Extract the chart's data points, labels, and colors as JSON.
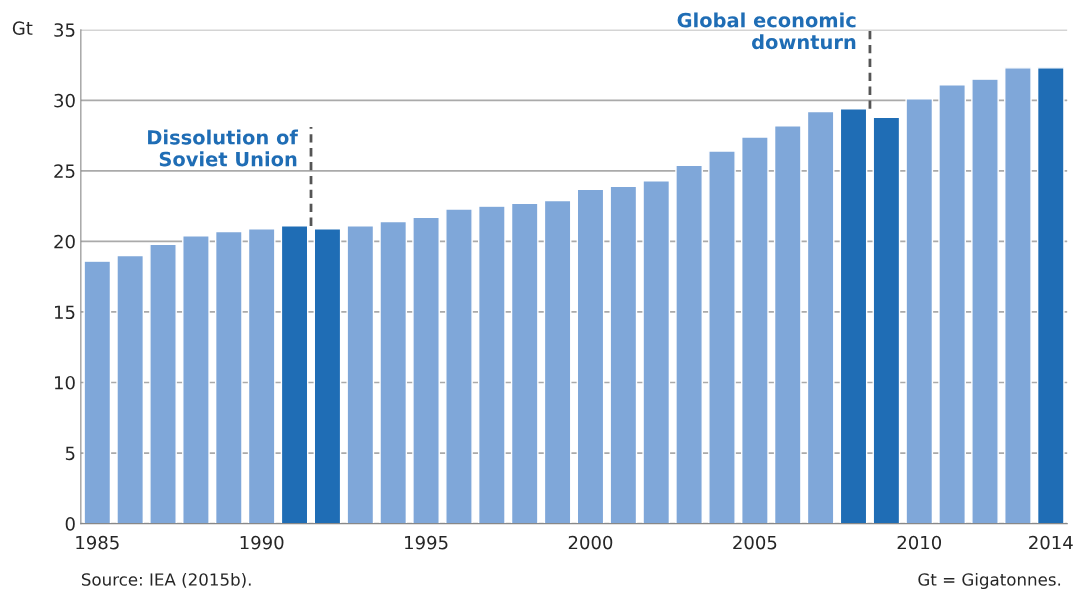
{
  "chart_data": {
    "type": "bar",
    "ylabel": "Gt",
    "x": [
      1985,
      1986,
      1987,
      1988,
      1989,
      1990,
      1991,
      1992,
      1993,
      1994,
      1995,
      1996,
      1997,
      1998,
      1999,
      2000,
      2001,
      2002,
      2003,
      2004,
      2005,
      2006,
      2007,
      2008,
      2009,
      2010,
      2011,
      2012,
      2013,
      2014
    ],
    "values": [
      18.6,
      19.0,
      19.8,
      20.4,
      20.7,
      20.9,
      21.1,
      20.9,
      21.1,
      21.4,
      21.7,
      22.3,
      22.5,
      22.7,
      22.9,
      23.7,
      23.9,
      24.3,
      25.4,
      26.4,
      27.4,
      28.2,
      29.2,
      29.4,
      28.8,
      30.1,
      31.1,
      31.5,
      32.3,
      32.3
    ],
    "colors": [
      "#7fa7d9",
      "#7fa7d9",
      "#7fa7d9",
      "#7fa7d9",
      "#7fa7d9",
      "#7fa7d9",
      "#1f6db5",
      "#1f6db5",
      "#7fa7d9",
      "#7fa7d9",
      "#7fa7d9",
      "#7fa7d9",
      "#7fa7d9",
      "#7fa7d9",
      "#7fa7d9",
      "#7fa7d9",
      "#7fa7d9",
      "#7fa7d9",
      "#7fa7d9",
      "#7fa7d9",
      "#7fa7d9",
      "#7fa7d9",
      "#7fa7d9",
      "#1f6db5",
      "#1f6db5",
      "#7fa7d9",
      "#7fa7d9",
      "#7fa7d9",
      "#7fa7d9",
      "#1f6db5"
    ],
    "xlim": [
      1984.5,
      2014.5
    ],
    "xticks": [
      1985,
      1990,
      1995,
      2000,
      2005,
      2010,
      2014
    ],
    "ylim": [
      0,
      35
    ],
    "yticks": [
      0,
      5,
      10,
      15,
      20,
      25,
      30,
      35
    ],
    "grid": "y",
    "ref_lines": [
      {
        "axis": "x",
        "value": 1991.5,
        "label": "Dissolution of\nSoviet Union",
        "color": "#555555",
        "line_style": "dashed"
      },
      {
        "axis": "x",
        "value": 2008.5,
        "label": "Global economic\ndownturn",
        "color": "#555555",
        "line_style": "dashed"
      }
    ],
    "annotations": [
      "Source: IEA (2015b).",
      "Gt = Gigatonnes."
    ]
  }
}
